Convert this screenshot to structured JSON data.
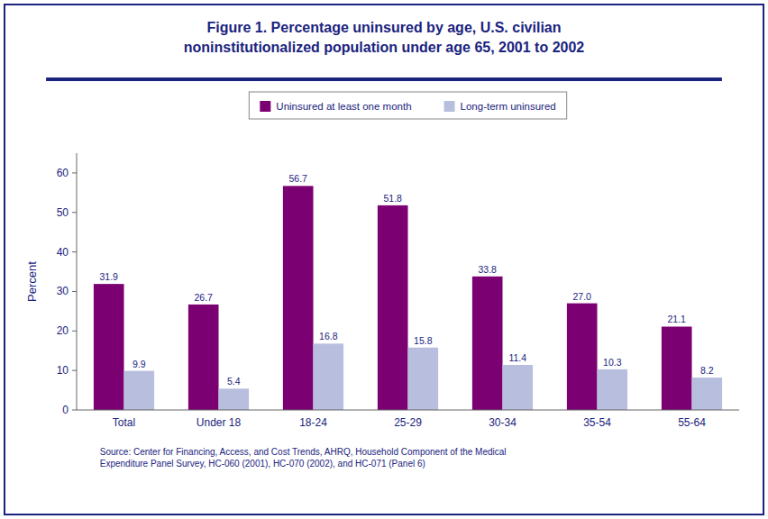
{
  "chart_data": {
    "type": "bar",
    "title": "Figure 1. Percentage uninsured by age, U.S. civilian\nnoninstitutionalized population under age 65, 2001 to 2002",
    "y_label": "Percent",
    "annotations": [
      "Source: Center for Financing, Access, and Cost Trends, AHRQ, Household Component of the Medical\nExpenditure Panel Survey, HC-060 (2001), HC-070 (2002), and HC-071 (Panel 6)"
    ],
    "categories": [
      "Total",
      "Under 18",
      "18-24",
      "25-29",
      "30-34",
      "35-54",
      "55-64"
    ],
    "series": [
      {
        "name": "Uninsured at least one month",
        "color": "#7b0071",
        "values": [
          31.9,
          26.7,
          56.7,
          51.8,
          33.8,
          27.0,
          21.1
        ],
        "value_labels": [
          "31.9",
          "26.7",
          "56.7",
          "51.8",
          "33.8",
          "27.0",
          "21.1"
        ]
      },
      {
        "name": "Long-term uninsured",
        "color": "#b8bedd",
        "values": [
          9.9,
          5.4,
          16.8,
          15.8,
          11.4,
          10.3,
          8.2
        ]
      }
    ],
    "ylim": [
      0,
      65
    ],
    "yticks": [
      0,
      10,
      20,
      30,
      40,
      50,
      60
    ],
    "grid": false,
    "legend": "top",
    "data_labels": true
  }
}
